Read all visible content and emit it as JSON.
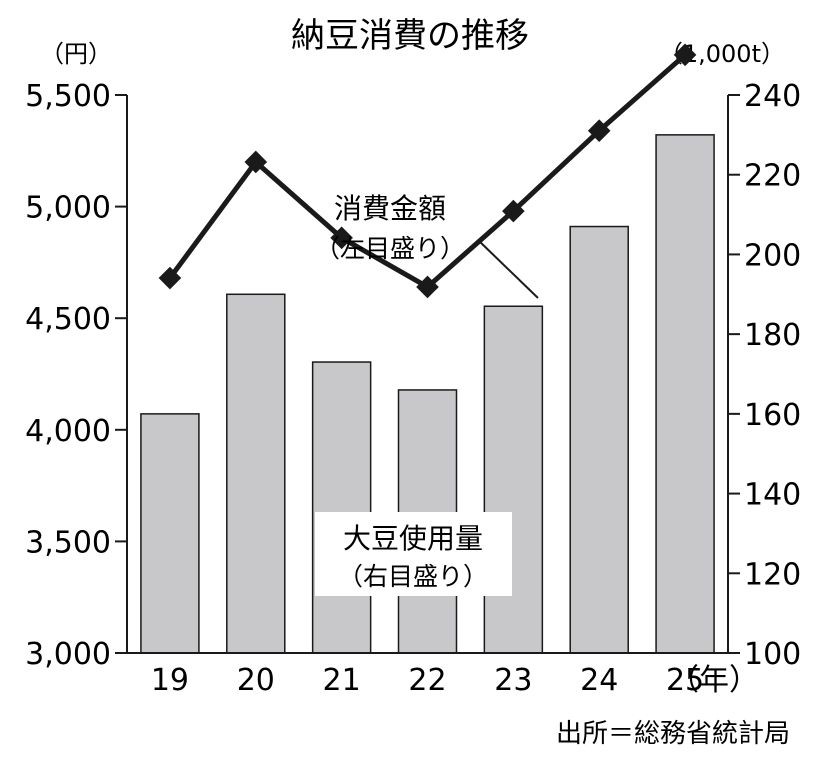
{
  "chart_data": {
    "type": "bar",
    "title": "納豆消費の推移",
    "categories": [
      "19",
      "20",
      "21",
      "22",
      "23",
      "24",
      "25"
    ],
    "x_unit": "（年）",
    "left_axis": {
      "unit": "（円）",
      "ylim": [
        3000,
        5500
      ],
      "ticks": [
        "5,500",
        "5,000",
        "4,500",
        "4,000",
        "3,500",
        "3,000"
      ]
    },
    "right_axis": {
      "unit": "（1,000t）",
      "ylim": [
        100,
        240
      ],
      "ticks": [
        "240",
        "220",
        "200",
        "180",
        "160",
        "140",
        "120",
        "100"
      ]
    },
    "series": [
      {
        "name": "消費金額",
        "note": "（左目盛り）",
        "type": "line",
        "axis": "left",
        "values": [
          4680,
          5200,
          4860,
          4640,
          4980,
          5340,
          5680
        ]
      },
      {
        "name": "大豆使用量",
        "note": "（右目盛り）",
        "type": "bar",
        "axis": "right",
        "values": [
          160,
          190,
          173,
          166,
          187,
          207,
          230
        ]
      }
    ],
    "source": "出所＝総務省統計局"
  },
  "colors": {
    "bar_fill": "#c8c8ca",
    "ink": "#1a1a1a"
  }
}
